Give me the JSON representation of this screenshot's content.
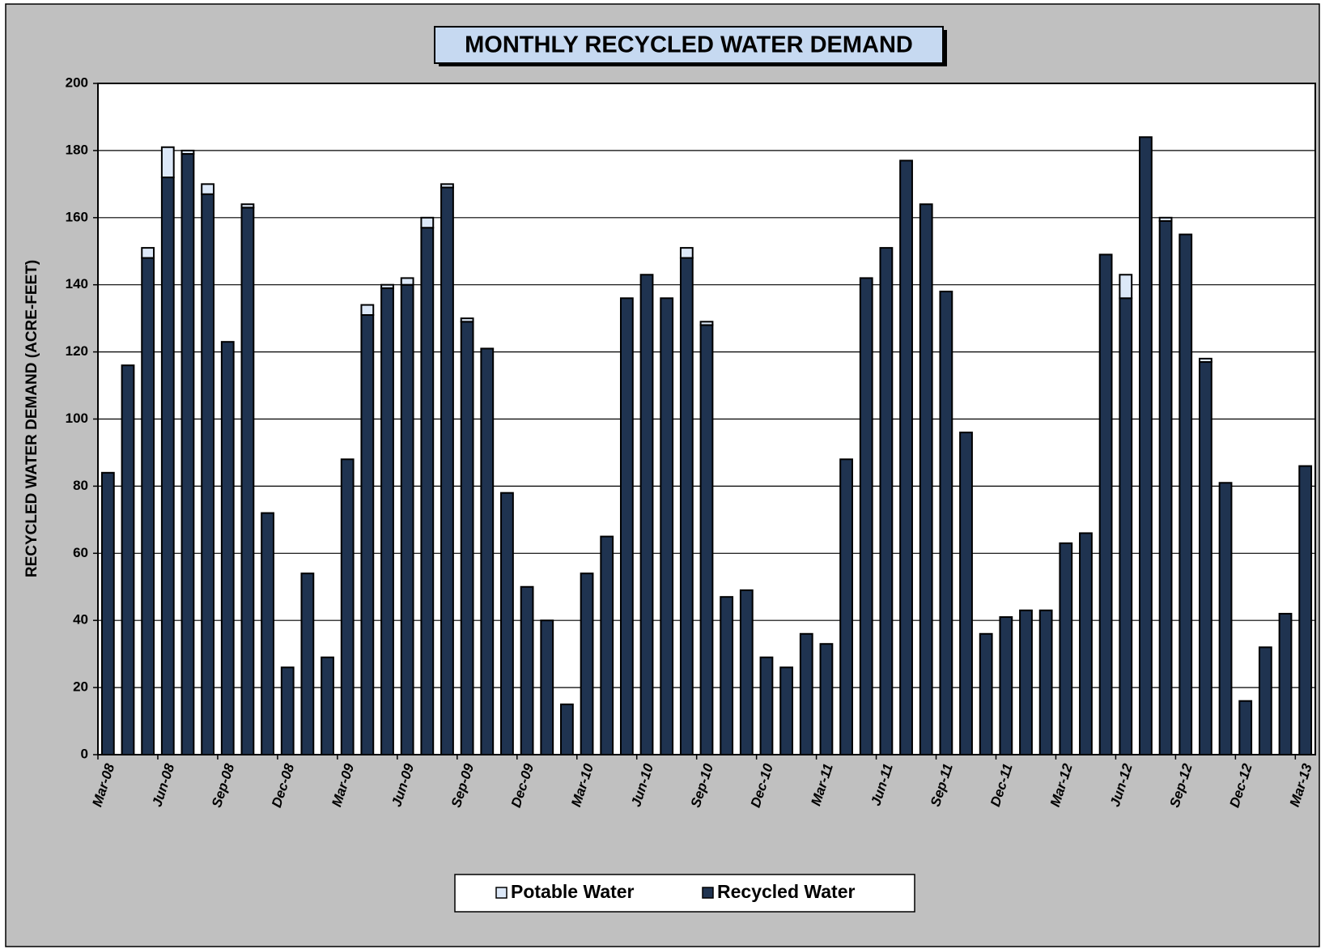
{
  "chart_data": {
    "type": "stacked_bar",
    "title": "MONTHLY RECYCLED WATER DEMAND",
    "y_label": "RECYCLED WATER DEMAND (ACRE-FEET)",
    "categories": [
      "Mar-08",
      null,
      null,
      "Jun-08",
      null,
      null,
      "Sep-08",
      null,
      null,
      "Dec-08",
      null,
      null,
      "Mar-09",
      null,
      null,
      "Jun-09",
      null,
      null,
      "Sep-09",
      null,
      null,
      "Dec-09",
      null,
      null,
      "Mar-10",
      null,
      null,
      "Jun-10",
      null,
      null,
      "Sep-10",
      null,
      null,
      "Dec-10",
      null,
      null,
      "Mar-11",
      null,
      null,
      "Jun-11",
      null,
      null,
      "Sep-11",
      null,
      null,
      "Dec-11",
      null,
      null,
      "Mar-12",
      null,
      null,
      "Jun-12",
      null,
      null,
      "Sep-12",
      null,
      null,
      "Dec-12",
      null,
      null,
      "Mar-13"
    ],
    "series": [
      {
        "name": "Potable Water",
        "color": "#dce8f8",
        "values": [
          0,
          0,
          3,
          9,
          1,
          3,
          0,
          1,
          0,
          0,
          0,
          0,
          0,
          3,
          1,
          2,
          3,
          1,
          1,
          0,
          0,
          0,
          0,
          0,
          0,
          0,
          0,
          0,
          0,
          3,
          1,
          0,
          0,
          0,
          0,
          0,
          0,
          0,
          0,
          0,
          0,
          0,
          0,
          0,
          0,
          0,
          0,
          0,
          0,
          0,
          0,
          7,
          0,
          1,
          0,
          1,
          0,
          0,
          0,
          0,
          0
        ]
      },
      {
        "name": "Recycled Water",
        "color": "#1f3350",
        "values": [
          84,
          116,
          148,
          172,
          179,
          167,
          123,
          163,
          72,
          26,
          54,
          29,
          88,
          131,
          139,
          140,
          157,
          169,
          129,
          121,
          78,
          50,
          40,
          15,
          54,
          65,
          136,
          143,
          136,
          148,
          128,
          47,
          49,
          29,
          26,
          36,
          33,
          88,
          142,
          151,
          177,
          164,
          138,
          96,
          36,
          41,
          43,
          43,
          63,
          66,
          149,
          136,
          184,
          159,
          155,
          117,
          81,
          16,
          32,
          42,
          86
        ]
      }
    ],
    "stack_order": [
      1,
      0
    ],
    "ylim": [
      0,
      200
    ],
    "yticks": [
      0,
      20,
      40,
      60,
      80,
      100,
      120,
      140,
      160,
      180,
      200
    ],
    "grid": true,
    "legend": "bottom"
  }
}
